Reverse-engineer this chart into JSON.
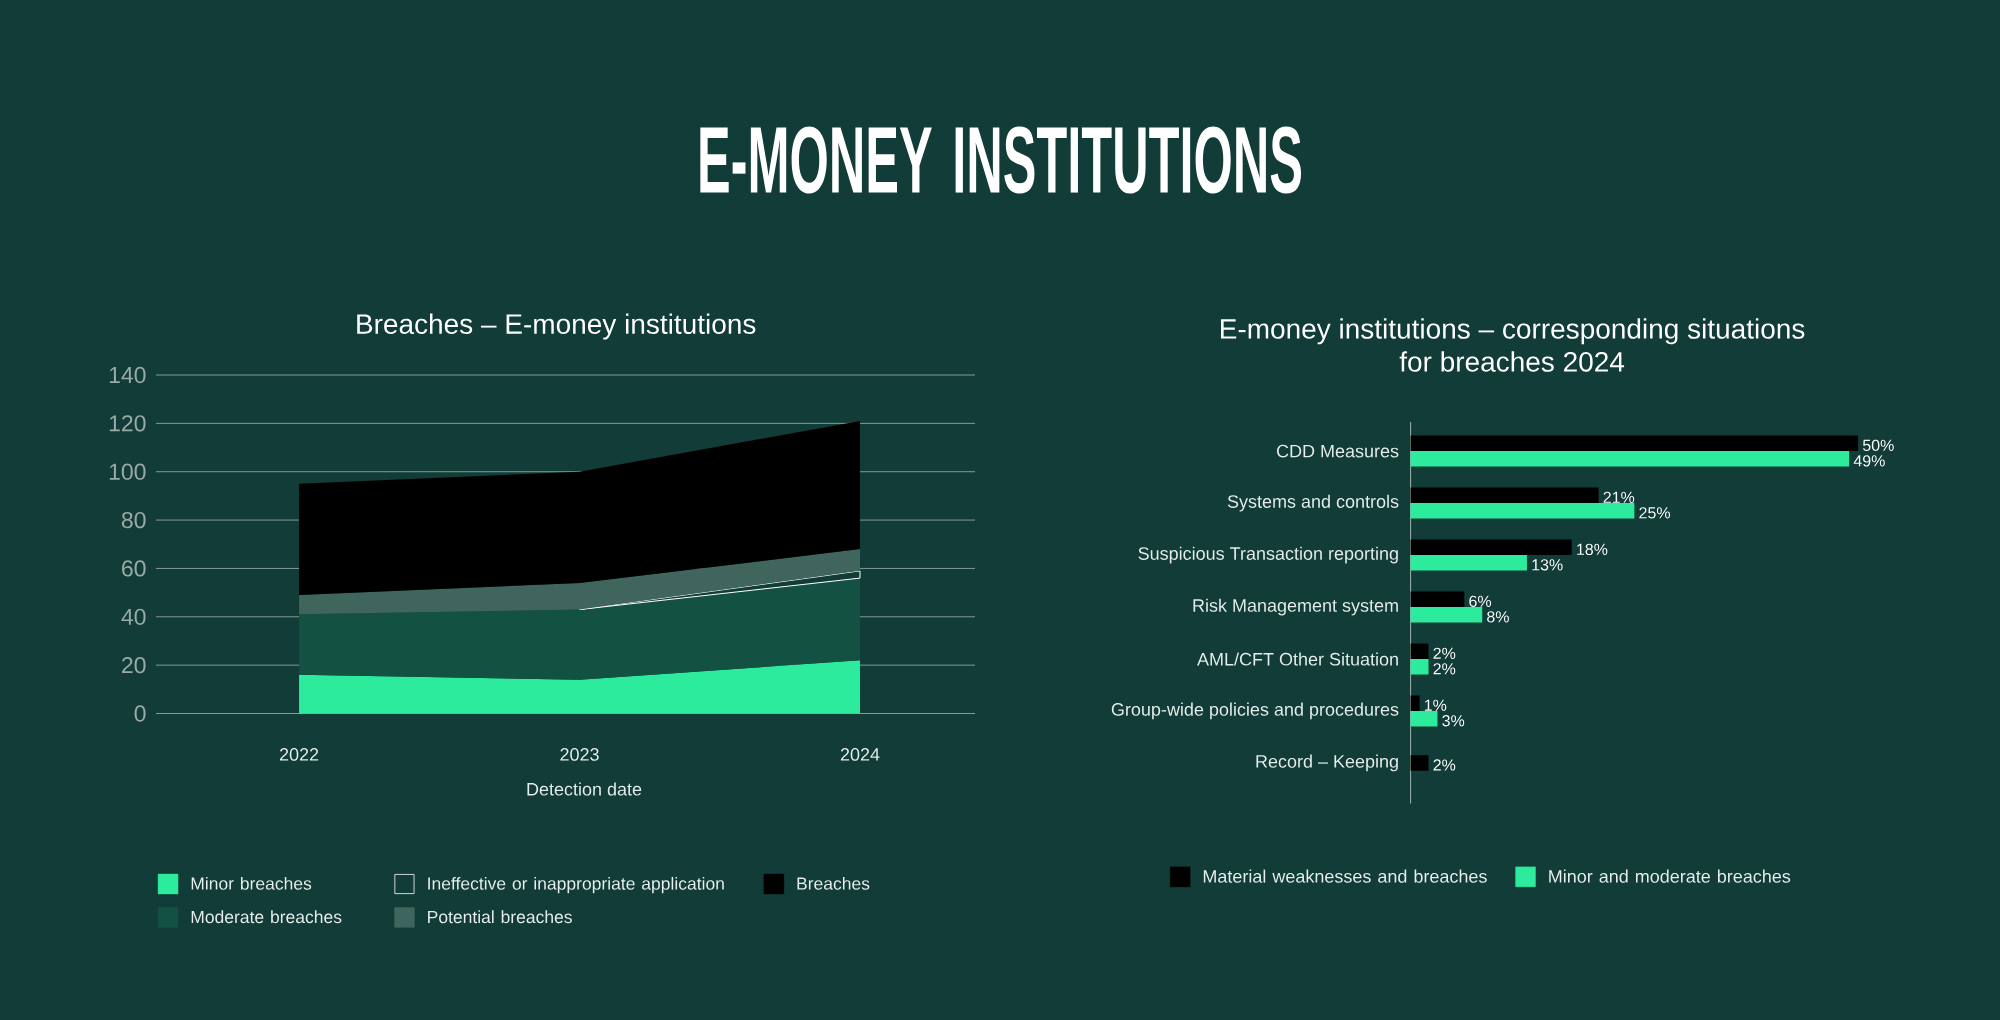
{
  "chart_data": [
    {
      "type": "area",
      "title": "Breaches – E-money institutions",
      "xlabel": "Detection date",
      "annotations": [
        "E-MONEY INSTITUTIONS"
      ],
      "categories": [
        "2022",
        "2023",
        "2024"
      ],
      "stacked": true,
      "series": [
        {
          "name": "Minor breaches",
          "color": "#2deb9d",
          "values": [
            16,
            14,
            22
          ]
        },
        {
          "name": "Moderate breaches",
          "color": "#135243",
          "values": [
            25,
            29,
            34
          ]
        },
        {
          "name": "Ineffective or inappropriate application",
          "color": "#113c37",
          "values": [
            null,
            0,
            3
          ]
        },
        {
          "name": "Potential breaches",
          "color": "#3f655d",
          "values": [
            8,
            11,
            9
          ]
        },
        {
          "name": "Breaches",
          "color": "#000000",
          "values": [
            46,
            46,
            53
          ]
        }
      ],
      "ylim": [
        0,
        140
      ],
      "yticks": [
        0,
        20,
        40,
        60,
        80,
        100,
        120,
        140
      ],
      "grid": "y",
      "legend": "bottom"
    },
    {
      "type": "bar",
      "orientation": "horizontal",
      "title": "E-money institutions – corresponding situations for breaches 2024",
      "categories": [
        "CDD Measures",
        "Systems and controls",
        "Suspicious Transaction reporting",
        "Risk Management system",
        "AML/CFT Other Situation",
        "Group-wide policies and procedures",
        "Record – Keeping"
      ],
      "series": [
        {
          "name": "Material weaknesses and breaches",
          "color": "#000000",
          "values": [
            50,
            21,
            18,
            6,
            2,
            1,
            2
          ],
          "value_labels": [
            "50%",
            "21%",
            "18%",
            "6%",
            "2%",
            "1%",
            "2%"
          ]
        },
        {
          "name": "Minor and moderate breaches",
          "color": "#2deb9d",
          "values": [
            49,
            25,
            13,
            8,
            2,
            3,
            null
          ],
          "value_labels": [
            "49%",
            "25%",
            "13%",
            "8%",
            "2%",
            "3%",
            null
          ]
        }
      ],
      "tick_labels": "y",
      "legend": "bottom"
    }
  ]
}
